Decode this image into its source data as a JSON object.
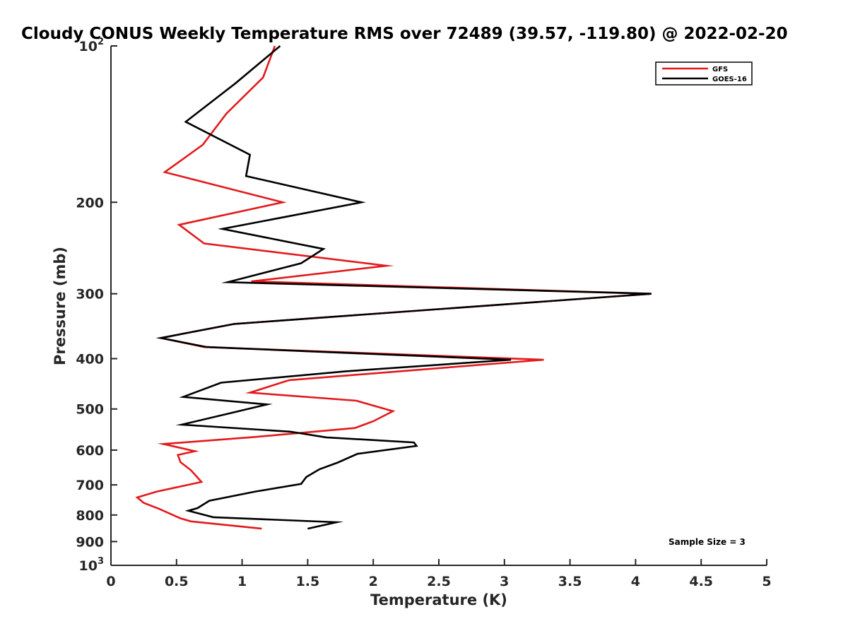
{
  "chart_data": {
    "type": "line",
    "title": "Cloudy CONUS Weekly Temperature RMS over 72489 (39.57, -119.80) @ 2022-02-20",
    "xlabel": "Temperature (K)",
    "ylabel": "Pressure (mb)",
    "xlim": [
      0,
      5
    ],
    "ylim": [
      100,
      1000
    ],
    "y_scale": "log",
    "y_reversed": true,
    "x_ticks": [
      "0",
      "0.5",
      "1",
      "1.5",
      "2",
      "2.5",
      "3",
      "3.5",
      "4",
      "4.5",
      "5"
    ],
    "y_ticks": [
      {
        "value": 100,
        "base": "10",
        "exp": "2"
      },
      {
        "value": 200,
        "label": "200"
      },
      {
        "value": 300,
        "label": "300"
      },
      {
        "value": 400,
        "label": "400"
      },
      {
        "value": 500,
        "label": "500"
      },
      {
        "value": 600,
        "label": "600"
      },
      {
        "value": 700,
        "label": "700"
      },
      {
        "value": 800,
        "label": "800"
      },
      {
        "value": 900,
        "label": "900"
      },
      {
        "value": 1000,
        "base": "10",
        "exp": "3"
      }
    ],
    "grid": false,
    "legend_position": "top-right",
    "series": [
      {
        "name": "GFS",
        "color": "#e31a1c",
        "points": [
          [
            1.25,
            100
          ],
          [
            1.16,
            115
          ],
          [
            0.88,
            135
          ],
          [
            0.7,
            155
          ],
          [
            0.41,
            175
          ],
          [
            1.31,
            200
          ],
          [
            0.52,
            221
          ],
          [
            0.71,
            240
          ],
          [
            2.1,
            265
          ],
          [
            1.07,
            284
          ],
          [
            4.12,
            300
          ],
          [
            0.94,
            343
          ],
          [
            0.38,
            365
          ],
          [
            0.71,
            380
          ],
          [
            3.3,
            402
          ],
          [
            1.36,
            440
          ],
          [
            1.06,
            465
          ],
          [
            1.87,
            482
          ],
          [
            2.15,
            505
          ],
          [
            2.0,
            528
          ],
          [
            1.86,
            544
          ],
          [
            1.1,
            566
          ],
          [
            0.4,
            584
          ],
          [
            0.64,
            603
          ],
          [
            0.51,
            613
          ],
          [
            0.53,
            633
          ],
          [
            0.61,
            656
          ],
          [
            0.69,
            691
          ],
          [
            0.35,
            721
          ],
          [
            0.2,
            740
          ],
          [
            0.25,
            758
          ],
          [
            0.37,
            779
          ],
          [
            0.53,
            812
          ],
          [
            0.61,
            823
          ],
          [
            1.15,
            850
          ]
        ]
      },
      {
        "name": "GOES-16",
        "color": "#000000",
        "points": [
          [
            1.29,
            100
          ],
          [
            0.95,
            118
          ],
          [
            0.57,
            140
          ],
          [
            1.06,
            162
          ],
          [
            1.03,
            178
          ],
          [
            1.91,
            200
          ],
          [
            0.85,
            225
          ],
          [
            1.62,
            246
          ],
          [
            1.45,
            262
          ],
          [
            0.89,
            285
          ],
          [
            4.12,
            300
          ],
          [
            0.94,
            343
          ],
          [
            0.38,
            365
          ],
          [
            0.73,
            380
          ],
          [
            3.05,
            402
          ],
          [
            1.79,
            423
          ],
          [
            0.84,
            445
          ],
          [
            0.55,
            474
          ],
          [
            1.19,
            490
          ],
          [
            0.9,
            510
          ],
          [
            0.54,
            536
          ],
          [
            1.37,
            553
          ],
          [
            1.64,
            567
          ],
          [
            2.31,
            580
          ],
          [
            2.33,
            589
          ],
          [
            1.88,
            610
          ],
          [
            1.73,
            634
          ],
          [
            1.59,
            653
          ],
          [
            1.49,
            676
          ],
          [
            1.45,
            697
          ],
          [
            1.1,
            721
          ],
          [
            0.75,
            751
          ],
          [
            0.66,
            776
          ],
          [
            0.59,
            785
          ],
          [
            0.78,
            808
          ],
          [
            1.72,
            826
          ],
          [
            1.5,
            850
          ]
        ]
      }
    ],
    "annotations": [
      "Sample Size = 3"
    ]
  }
}
